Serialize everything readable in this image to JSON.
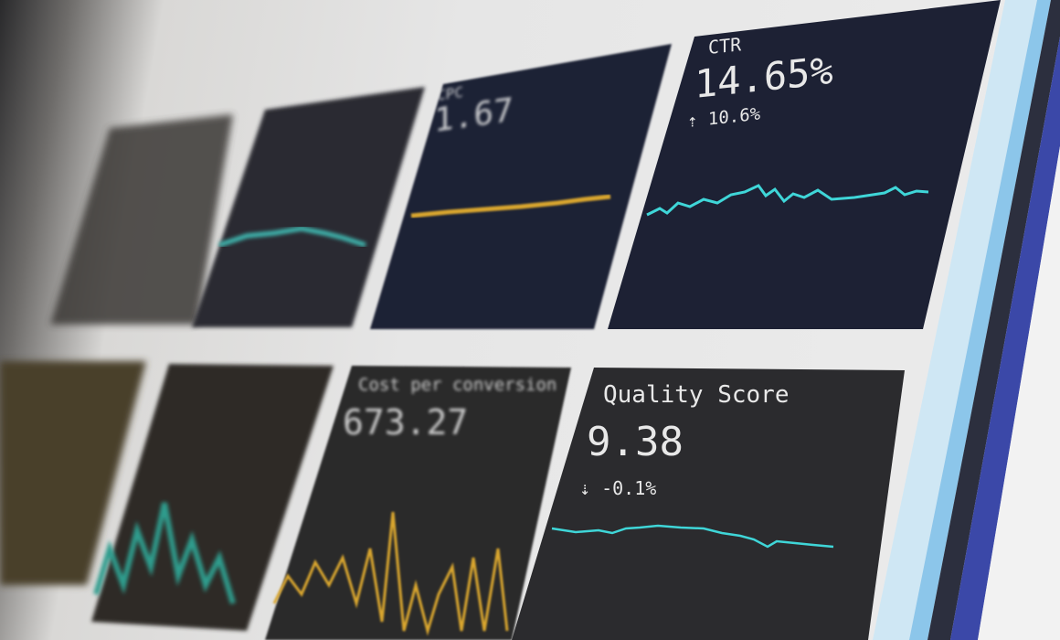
{
  "dashboard": {
    "top_row": [
      {
        "label": "",
        "value": "",
        "change": ""
      },
      {
        "label": "",
        "value": "",
        "change": ""
      },
      {
        "label": "CPC",
        "value": "1.67",
        "change": ""
      },
      {
        "label": "CTR",
        "value": "14.65%",
        "change": "10.6%",
        "trend": "up"
      }
    ],
    "bottom_row": [
      {
        "label": "",
        "value": "",
        "change": ""
      },
      {
        "label": "",
        "value": "",
        "change": ""
      },
      {
        "label": "Cost per conversion",
        "value": "673.27",
        "change": ""
      },
      {
        "label": "Quality Score",
        "value": "9.38",
        "change": "-0.1%",
        "trend": "down"
      }
    ]
  },
  "colors": {
    "card_bg": "#1e2338",
    "card_bg_bottom": "#2b2b2e",
    "teal": "#3fd6d8",
    "gold": "#d9a62e",
    "stripe_light_blue": "#a9d6ee",
    "stripe_navy": "#2d3a8c"
  }
}
